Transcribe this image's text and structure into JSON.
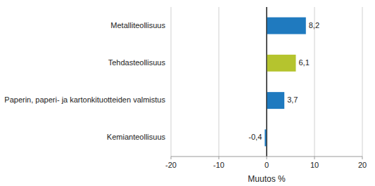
{
  "chart_data": {
    "type": "bar",
    "orientation": "horizontal",
    "categories": [
      "Kemianteollisuus",
      "Paperin, paperi- ja kartonkituotteiden valmistus",
      "Tehdasteollisuus",
      "Metalliteollisuus"
    ],
    "values": [
      -0.4,
      3.7,
      6.1,
      8.2
    ],
    "value_labels": [
      "-0,4",
      "3,7",
      "6,1",
      "8,2"
    ],
    "data_labels": true,
    "colors": [
      "#1f7abf",
      "#1f7abf",
      "#b5c42e",
      "#1f7abf"
    ],
    "xlabel": "Muutos %",
    "xlim": [
      -20,
      20
    ],
    "xticks": [
      -20,
      -10,
      0,
      10,
      20
    ],
    "grid": true
  }
}
